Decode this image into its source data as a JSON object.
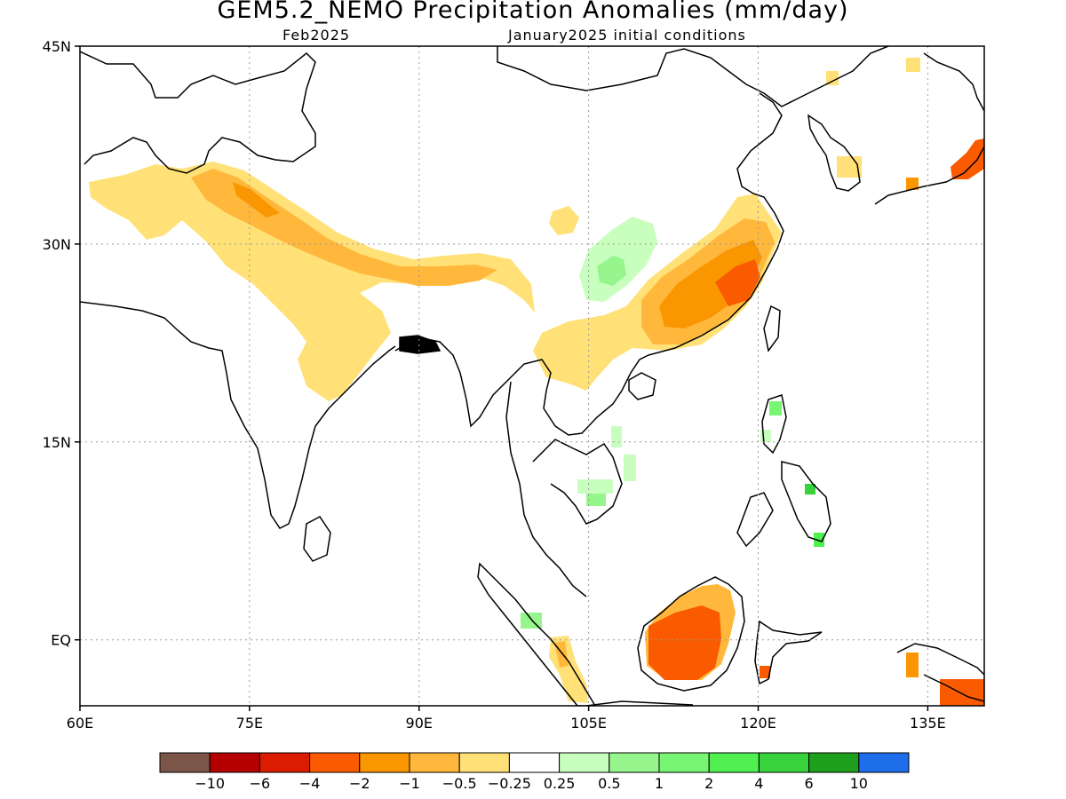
{
  "title": "GEM5.2_NEMO Precipitation Anomalies (mm/day)",
  "subtitle_left": "Feb2025",
  "subtitle_right": "January2025 initial conditions",
  "axes": {
    "lat_ticks": [
      {
        "value": 45,
        "label": "45N"
      },
      {
        "value": 30,
        "label": "30N"
      },
      {
        "value": 15,
        "label": "15N"
      },
      {
        "value": 0,
        "label": "EQ"
      }
    ],
    "lon_ticks": [
      {
        "value": 60,
        "label": "60E"
      },
      {
        "value": 75,
        "label": "75E"
      },
      {
        "value": 90,
        "label": "90E"
      },
      {
        "value": 105,
        "label": "105E"
      },
      {
        "value": 120,
        "label": "120E"
      },
      {
        "value": 135,
        "label": "135E"
      }
    ],
    "lon_range": [
      60,
      140
    ],
    "lat_range": [
      -5,
      45
    ],
    "grid": "dotted"
  },
  "colorbar": {
    "colors": [
      "#7a5548",
      "#b40000",
      "#dc1c00",
      "#fa5a00",
      "#fa9600",
      "#ffb83c",
      "#ffe178",
      "#ffffff",
      "#c8ffbe",
      "#96f58c",
      "#78f573",
      "#50f050",
      "#37d23c",
      "#1ea01e",
      "#1e6eeb"
    ],
    "labels": [
      "−10",
      "−6",
      "−4",
      "−2",
      "−1",
      "−0.5",
      "−0.25",
      "0.25",
      "0.5",
      "1",
      "2",
      "4",
      "6",
      "10"
    ]
  }
}
